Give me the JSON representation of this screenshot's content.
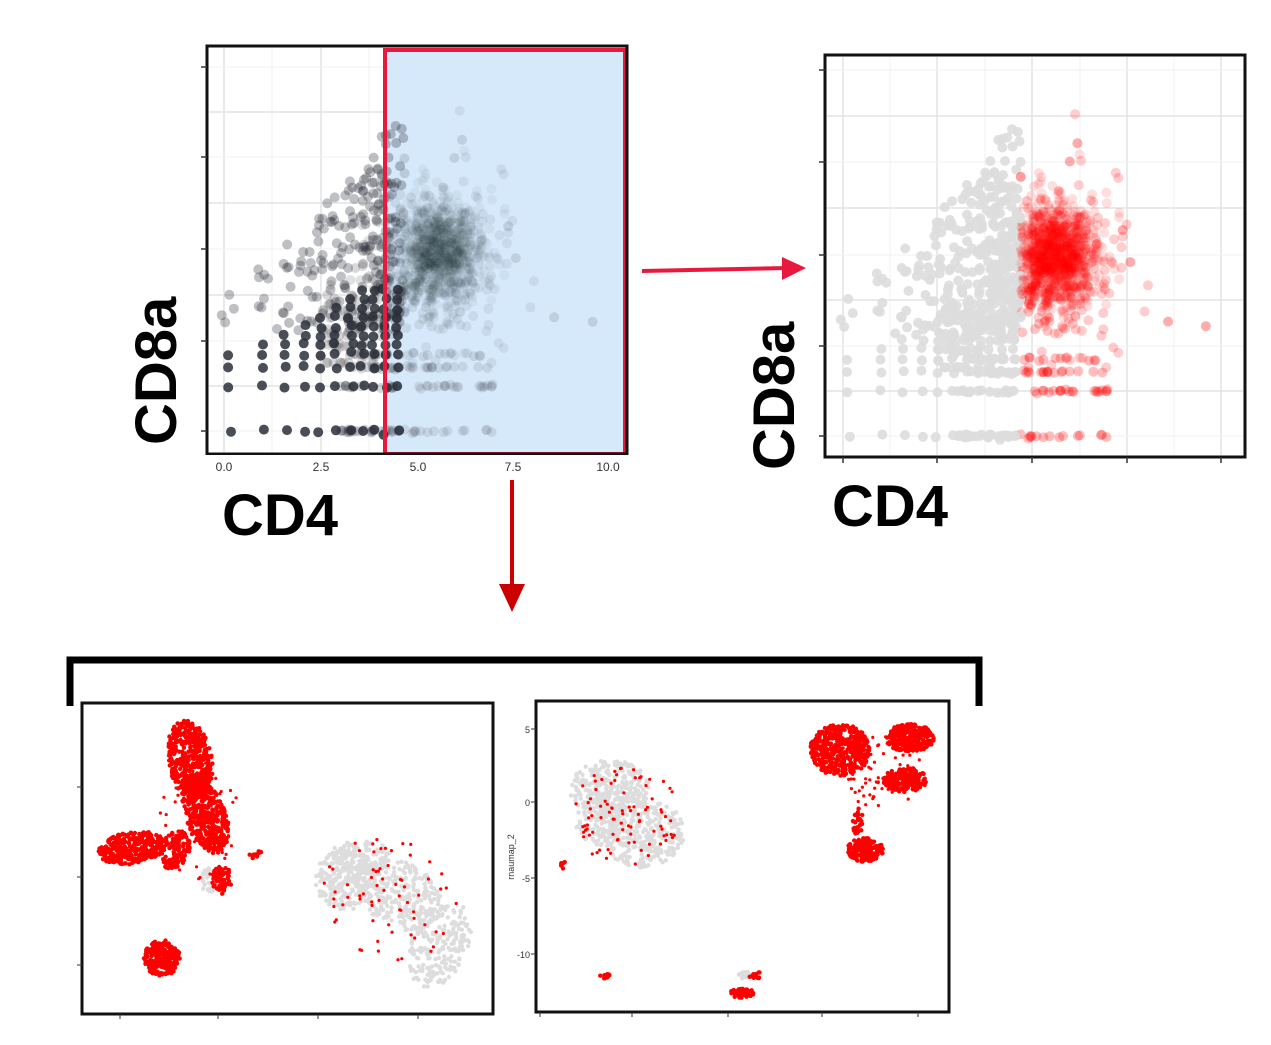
{
  "panels": {
    "gate_plot": {
      "xlabel": "CD4",
      "ylabel": "CD8a",
      "x_ticks": [
        "0.0",
        "2.5",
        "5.0",
        "7.5",
        "10.0"
      ],
      "gate": {
        "type": "rectangle",
        "x_min": 4.7,
        "x_max": 10.0,
        "color": "#e8193c",
        "fill": "#d6e9fb"
      }
    },
    "highlight_plot": {
      "xlabel": "CD4",
      "ylabel": "CD8a",
      "highlight_color": "#ff0000",
      "background_color": "#dddddd"
    },
    "umap_left": {
      "highlight_color": "#ff0000",
      "background_color": "#dddddd"
    },
    "umap_right": {
      "ylabel": "rnaumap_2",
      "y_ticks": [
        "5",
        "0",
        "-5",
        "-10"
      ],
      "highlight_color": "#ff0000",
      "background_color": "#dddddd"
    }
  },
  "arrows": {
    "gate_to_highlight": {
      "color": "#e8193c",
      "direction": "right"
    },
    "gate_to_umap": {
      "color": "#cc0000",
      "direction": "down"
    }
  },
  "bracket": {
    "color": "#000000"
  }
}
